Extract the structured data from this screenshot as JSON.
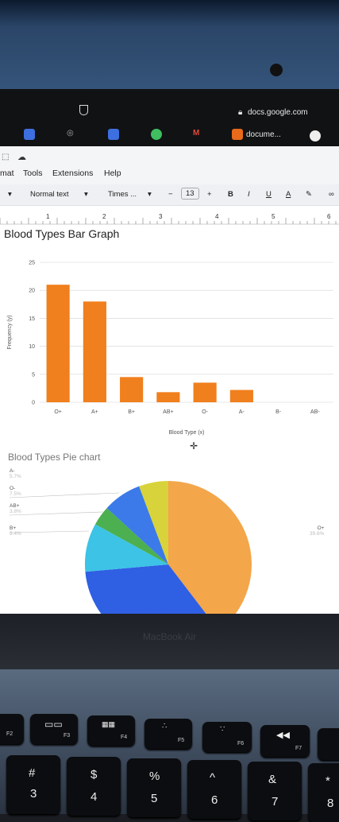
{
  "browser": {
    "url": "docs.google.com",
    "tab_label": "docume..."
  },
  "menu": {
    "items": [
      "mat",
      "Tools",
      "Extensions",
      "Help"
    ]
  },
  "toolbar": {
    "style": "Normal text",
    "font": "Times ...",
    "size": "13",
    "bold": "B",
    "italic": "I",
    "underline": "U",
    "text_color": "A"
  },
  "ruler": {
    "numbers": [
      "1",
      "2",
      "3",
      "4",
      "5",
      "6"
    ]
  },
  "bar_heading": "Blood Types Bar Graph",
  "pie_heading": "Blood Types Pie chart",
  "chart_data": [
    {
      "type": "bar",
      "title": "",
      "xlabel": "Blood Type (x)",
      "ylabel": "Frequency (y)",
      "categories": [
        "O+",
        "A+",
        "B+",
        "AB+",
        "O-",
        "A-",
        "B-",
        "AB-"
      ],
      "values": [
        21,
        18,
        4.5,
        1.8,
        3.5,
        2.2,
        0,
        0
      ],
      "ylim": [
        0,
        25
      ],
      "yticks": [
        "0",
        "5",
        "10",
        "15",
        "20",
        "25"
      ],
      "color": "#f07f1d",
      "grid": true
    },
    {
      "type": "pie",
      "labels": [
        {
          "name": "A-",
          "pct": "5.7%"
        },
        {
          "name": "O-",
          "pct": "7.5%"
        },
        {
          "name": "AB+",
          "pct": "3.8%"
        },
        {
          "name": "B+",
          "pct": "9.4%"
        },
        {
          "name": "O+",
          "pct": "39.6%"
        }
      ],
      "slices": [
        {
          "name": "O+",
          "value": 39.6,
          "color": "#f3a64a"
        },
        {
          "name": "A+",
          "value": 34.0,
          "color": "#2f5fe3"
        },
        {
          "name": "B+",
          "value": 9.4,
          "color": "#3cc3e6"
        },
        {
          "name": "AB+",
          "value": 3.8,
          "color": "#4caf50"
        },
        {
          "name": "O-",
          "value": 7.5,
          "color": "#3b7ae8"
        },
        {
          "name": "A-",
          "value": 5.7,
          "color": "#d8d33a"
        }
      ]
    }
  ],
  "laptop": {
    "brand": "MacBook Air"
  },
  "keys": {
    "f2": "F2",
    "f3": "F3",
    "f4": "F4",
    "f5": "F5",
    "f6": "F6",
    "f7": "F7",
    "k3_top": "#",
    "k3": "3",
    "k4_top": "$",
    "k4": "4",
    "k5_top": "%",
    "k5": "5",
    "k6_top": "^",
    "k6": "6",
    "k7_top": "&",
    "k7": "7",
    "k8_top": "*",
    "k8": "8"
  }
}
